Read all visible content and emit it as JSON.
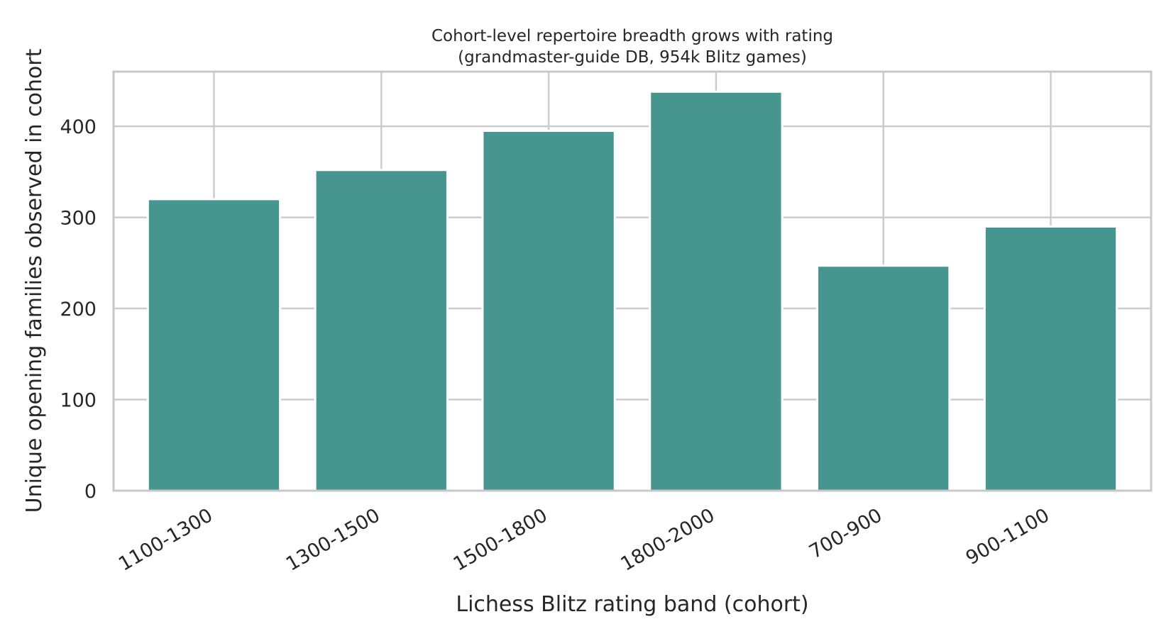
{
  "chart_data": {
    "type": "bar",
    "title": "Cohort-level repertoire breadth grows with rating\n(grandmaster-guide DB, 954k Blitz games)",
    "title_lines": [
      "Cohort-level repertoire breadth grows with rating",
      "(grandmaster-guide DB, 954k Blitz games)"
    ],
    "xlabel": "Lichess Blitz rating band (cohort)",
    "ylabel": "Unique opening families observed in cohort",
    "categories": [
      "1100-1300",
      "1300-1500",
      "1500-1800",
      "1800-2000",
      "700-900",
      "900-1100"
    ],
    "values": [
      320,
      352,
      395,
      438,
      247,
      290
    ],
    "ylim": [
      0,
      460
    ],
    "yticks": [
      0,
      100,
      200,
      300,
      400
    ],
    "grid": true,
    "legend": "none",
    "bar_color": "#46958f",
    "grid_color": "#cccccc",
    "spine_color": "#c8c8c8"
  }
}
